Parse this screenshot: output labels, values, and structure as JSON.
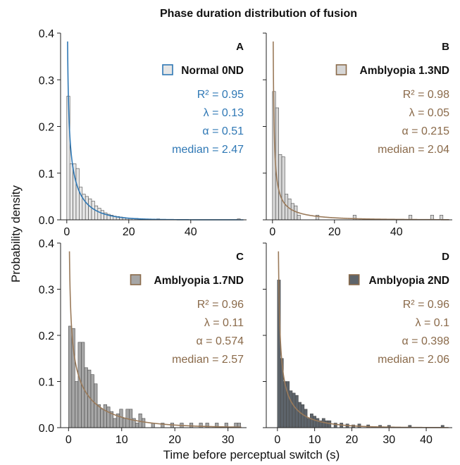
{
  "figure": {
    "title": "Phase duration distribution of fusion",
    "shared_xlabel": "Time before perceptual switch (s)",
    "shared_ylabel": "Probability density"
  },
  "chart_data": [
    {
      "type": "bar",
      "panel": "A",
      "legend": "Normal 0ND",
      "bar_color": "#e6e6e6",
      "legend_edge_color": "#2f78b5",
      "curve_color": "#2f78b5",
      "stats_color": "#2f78b5",
      "stats": [
        "R² = 0.95",
        "λ = 0.13",
        "α = 0.51",
        "median = 2.47"
      ],
      "params": {
        "lambda": 0.13,
        "alpha": 0.51
      },
      "xlim": [
        -2,
        58
      ],
      "ylim": [
        0,
        0.4
      ],
      "xticks": [
        0,
        20,
        40
      ],
      "yticks": [
        0.0,
        0.1,
        0.2,
        0.3,
        0.4
      ],
      "show_ytick_labels": true,
      "show_xtick_labels": true,
      "bin_width": 1.0,
      "hist_x": [
        0.5,
        1.5,
        2.5,
        3.5,
        4.5,
        5.5,
        6.5,
        7.5,
        8.5,
        9.5,
        10.5,
        11.5,
        12.5,
        13.5,
        14.5,
        15.5,
        16.5,
        17.5,
        18.5,
        19.5,
        20.5,
        22.5,
        24.5,
        29.5,
        55.5
      ],
      "hist_y": [
        0.265,
        0.12,
        0.12,
        0.11,
        0.07,
        0.055,
        0.05,
        0.045,
        0.04,
        0.03,
        0.025,
        0.02,
        0.015,
        0.012,
        0.01,
        0.008,
        0.007,
        0.006,
        0.005,
        0.004,
        0.003,
        0.003,
        0.002,
        0.002,
        0.002
      ]
    },
    {
      "type": "bar",
      "panel": "B",
      "legend": "Amblyopia 1.3ND",
      "bar_color": "#d6d6d6",
      "legend_edge_color": "#8a6a4a",
      "curve_color": "#9a7a5a",
      "stats_color": "#8a6a4a",
      "stats": [
        "R² = 0.98",
        "λ = 0.05",
        "α = 0.215",
        "median = 2.04"
      ],
      "params": {
        "lambda": 0.05,
        "alpha": 0.215
      },
      "xlim": [
        -2,
        58
      ],
      "ylim": [
        0,
        0.4
      ],
      "xticks": [
        0,
        20,
        40
      ],
      "yticks": [
        0.0,
        0.1,
        0.2,
        0.3,
        0.4
      ],
      "show_ytick_labels": false,
      "show_xtick_labels": true,
      "bin_width": 1.0,
      "hist_x": [
        0.5,
        1.5,
        2.5,
        3.5,
        4.5,
        5.5,
        6.5,
        7.5,
        8.5,
        14.5,
        26.5,
        44.5,
        51.5,
        54.5
      ],
      "hist_y": [
        0.275,
        0.24,
        0.14,
        0.135,
        0.055,
        0.045,
        0.035,
        0.03,
        0.01,
        0.01,
        0.01,
        0.01,
        0.01,
        0.01
      ]
    },
    {
      "type": "bar",
      "panel": "C",
      "legend": "Amblyopia 1.7ND",
      "bar_color": "#a6a6a6",
      "legend_edge_color": "#8a6a4a",
      "curve_color": "#9a7a5a",
      "stats_color": "#8a6a4a",
      "stats": [
        "R² = 0.96",
        "λ = 0.11",
        "α = 0.574",
        "median = 2.57"
      ],
      "params": {
        "lambda": 0.11,
        "alpha": 0.574
      },
      "xlim": [
        -1.5,
        33.5
      ],
      "ylim": [
        0,
        0.4
      ],
      "xticks": [
        0,
        10,
        20,
        30
      ],
      "yticks": [
        0.0,
        0.1,
        0.2,
        0.3,
        0.4
      ],
      "show_ytick_labels": true,
      "show_xtick_labels": true,
      "bin_width": 0.6,
      "hist_x": [
        0.3,
        0.9,
        1.5,
        2.1,
        2.7,
        3.3,
        3.9,
        4.5,
        5.1,
        5.7,
        6.3,
        6.9,
        7.5,
        8.1,
        8.7,
        9.3,
        9.9,
        10.5,
        11.1,
        11.7,
        12.3,
        12.9,
        13.5,
        14.1,
        15.9,
        17.7,
        19.5,
        21.3,
        23.1,
        24.9,
        26.1,
        27.9,
        29.7,
        31.5,
        32.1
      ],
      "hist_y": [
        0.22,
        0.215,
        0.1,
        0.185,
        0.185,
        0.13,
        0.125,
        0.115,
        0.095,
        0.05,
        0.04,
        0.05,
        0.045,
        0.035,
        0.02,
        0.03,
        0.04,
        0.02,
        0.04,
        0.04,
        0.02,
        0.01,
        0.03,
        0.02,
        0.01,
        0.01,
        0.01,
        0.01,
        0.01,
        0.01,
        0.01,
        0.01,
        0.01,
        0.01,
        0.01
      ]
    },
    {
      "type": "bar",
      "panel": "D",
      "legend": "Amblyopia 2ND",
      "bar_color": "#5d646b",
      "legend_edge_color": "#8a6a4a",
      "curve_color": "#9a7a5a",
      "stats_color": "#8a6a4a",
      "stats": [
        "R² = 0.96",
        "λ = 0.1",
        "α = 0.398",
        "median = 2.06"
      ],
      "params": {
        "lambda": 0.1,
        "alpha": 0.398
      },
      "xlim": [
        -3,
        47
      ],
      "ylim": [
        0,
        0.4
      ],
      "xticks": [
        0,
        10,
        20,
        30,
        40
      ],
      "yticks": [
        0.0,
        0.1,
        0.2,
        0.3,
        0.4
      ],
      "show_ytick_labels": false,
      "show_xtick_labels": true,
      "bin_width": 0.8,
      "hist_x": [
        0.4,
        1.2,
        2.0,
        2.8,
        3.6,
        4.4,
        5.2,
        6.0,
        6.8,
        7.6,
        8.4,
        9.2,
        10.0,
        10.8,
        11.6,
        12.4,
        13.2,
        14.0,
        15.6,
        17.2,
        18.8,
        20.4,
        22.0,
        24.4,
        27.6,
        30.0,
        35.6,
        44.4
      ],
      "hist_y": [
        0.32,
        0.15,
        0.1,
        0.1,
        0.08,
        0.075,
        0.07,
        0.055,
        0.05,
        0.04,
        0.02,
        0.03,
        0.025,
        0.02,
        0.015,
        0.02,
        0.015,
        0.015,
        0.01,
        0.01,
        0.008,
        0.006,
        0.008,
        0.006,
        0.005,
        0.005,
        0.005,
        0.005
      ]
    }
  ]
}
